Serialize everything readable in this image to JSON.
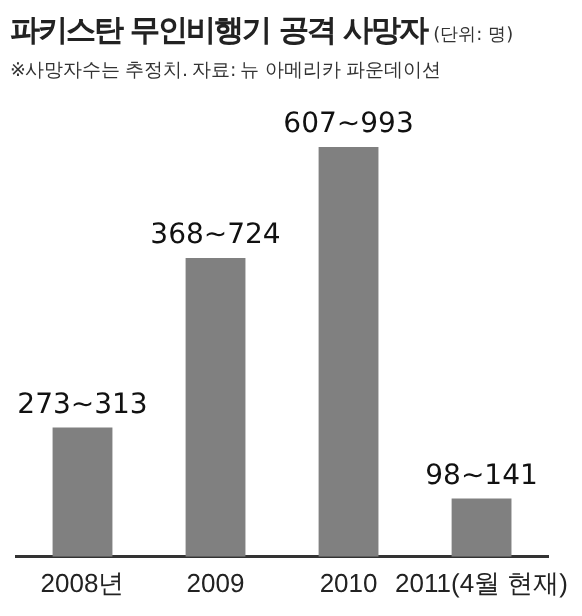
{
  "chart_data": {
    "type": "bar",
    "title": "파키스탄 무인비행기 공격 사망자",
    "subtitle": "※사망자수는 추정치.  자료: 뉴 아메리카 파운데이션",
    "annotations": [
      "(단위: 명)"
    ],
    "categories": [
      "2008년",
      "2009",
      "2010",
      "2011(4월 현재)"
    ],
    "values": [
      313,
      724,
      993,
      141
    ],
    "value_labels": [
      "273~313",
      "368~724",
      "607~993",
      "98~141"
    ],
    "color": "#808080",
    "ylim": [
      0,
      1000
    ],
    "tick_labels": "x",
    "grid": false,
    "legend": false
  }
}
